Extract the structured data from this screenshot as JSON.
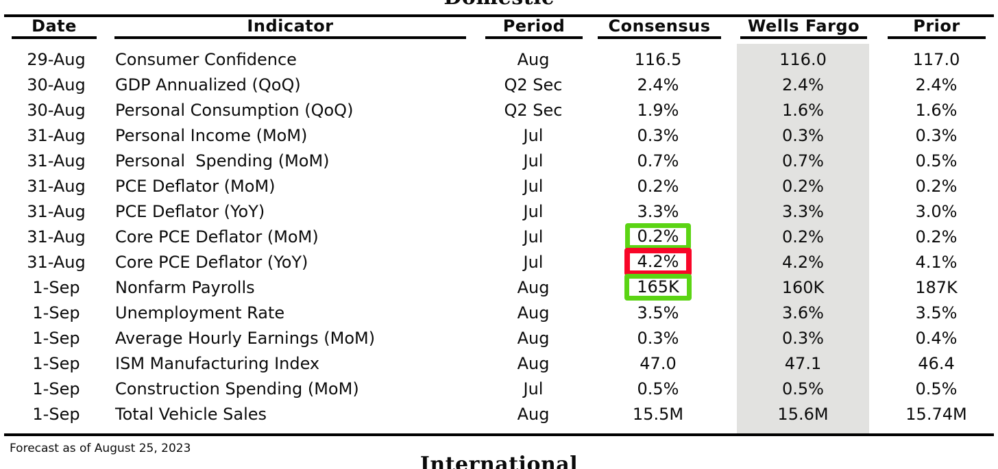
{
  "sections": {
    "domestic_title": "Domestic",
    "international_title": "International"
  },
  "table": {
    "columns": [
      "Date",
      "Indicator",
      "Period",
      "Consensus",
      "Wells Fargo",
      "Prior"
    ],
    "rows": [
      {
        "date": "29-Aug",
        "indicator": "Consumer Confidence",
        "period": "Aug",
        "consensus": "116.5",
        "wells_fargo": "116.0",
        "prior": "117.0",
        "consensus_highlight": null
      },
      {
        "date": "30-Aug",
        "indicator": "GDP Annualized (QoQ)",
        "period": "Q2 Sec",
        "consensus": "2.4%",
        "wells_fargo": "2.4%",
        "prior": "2.4%",
        "consensus_highlight": null
      },
      {
        "date": "30-Aug",
        "indicator": "Personal Consumption (QoQ)",
        "period": "Q2 Sec",
        "consensus": "1.9%",
        "wells_fargo": "1.6%",
        "prior": "1.6%",
        "consensus_highlight": null
      },
      {
        "date": "31-Aug",
        "indicator": "Personal Income (MoM)",
        "period": "Jul",
        "consensus": "0.3%",
        "wells_fargo": "0.3%",
        "prior": "0.3%",
        "consensus_highlight": null
      },
      {
        "date": "31-Aug",
        "indicator": "Personal  Spending (MoM)",
        "period": "Jul",
        "consensus": "0.7%",
        "wells_fargo": "0.7%",
        "prior": "0.5%",
        "consensus_highlight": null
      },
      {
        "date": "31-Aug",
        "indicator": "PCE Deflator (MoM)",
        "period": "Jul",
        "consensus": "0.2%",
        "wells_fargo": "0.2%",
        "prior": "0.2%",
        "consensus_highlight": null
      },
      {
        "date": "31-Aug",
        "indicator": "PCE Deflator (YoY)",
        "period": "Jul",
        "consensus": "3.3%",
        "wells_fargo": "3.3%",
        "prior": "3.0%",
        "consensus_highlight": null
      },
      {
        "date": "31-Aug",
        "indicator": "Core PCE Deflator (MoM)",
        "period": "Jul",
        "consensus": "0.2%",
        "wells_fargo": "0.2%",
        "prior": "0.2%",
        "consensus_highlight": "green"
      },
      {
        "date": "31-Aug",
        "indicator": "Core PCE Deflator (YoY)",
        "period": "Jul",
        "consensus": "4.2%",
        "wells_fargo": "4.2%",
        "prior": "4.1%",
        "consensus_highlight": "red"
      },
      {
        "date": "1-Sep",
        "indicator": "Nonfarm Payrolls",
        "period": "Aug",
        "consensus": "165K",
        "wells_fargo": "160K",
        "prior": "187K",
        "consensus_highlight": "green"
      },
      {
        "date": "1-Sep",
        "indicator": "Unemployment Rate",
        "period": "Aug",
        "consensus": "3.5%",
        "wells_fargo": "3.6%",
        "prior": "3.5%",
        "consensus_highlight": null
      },
      {
        "date": "1-Sep",
        "indicator": "Average Hourly Earnings (MoM)",
        "period": "Aug",
        "consensus": "0.3%",
        "wells_fargo": "0.3%",
        "prior": "0.4%",
        "consensus_highlight": null
      },
      {
        "date": "1-Sep",
        "indicator": "ISM Manufacturing Index",
        "period": "Aug",
        "consensus": "47.0",
        "wells_fargo": "47.1",
        "prior": "46.4",
        "consensus_highlight": null
      },
      {
        "date": "1-Sep",
        "indicator": "Construction Spending (MoM)",
        "period": "Jul",
        "consensus": "0.5%",
        "wells_fargo": "0.5%",
        "prior": "0.5%",
        "consensus_highlight": null
      },
      {
        "date": "1-Sep",
        "indicator": "Total Vehicle Sales",
        "period": "Aug",
        "consensus": "15.5M",
        "wells_fargo": "15.6M",
        "prior": "15.74M",
        "consensus_highlight": null
      }
    ]
  },
  "footer": {
    "forecast_note": "Forecast as of August 25, 2023"
  },
  "colors": {
    "highlight_green": "#5bd414",
    "highlight_red": "#f80628",
    "wells_fargo_band": "#e2e2e0",
    "rule": "#000000"
  }
}
